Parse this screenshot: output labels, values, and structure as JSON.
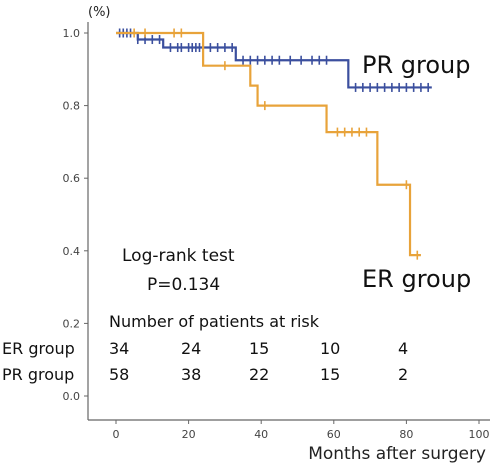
{
  "chart_data": {
    "type": "line",
    "y_unit_label": "(%)",
    "xlabel": "Months after surgery",
    "xlim": [
      0,
      100
    ],
    "ylim": [
      0.0,
      1.0
    ],
    "x_ticks": [
      "0",
      "20",
      "40",
      "60",
      "80",
      "100"
    ],
    "y_ticks": [
      "0.0",
      "0.2",
      "0.4",
      "0.6",
      "0.8",
      "1.0"
    ],
    "series": [
      {
        "name": "PR group",
        "color": "#3b4f9e",
        "steps": [
          [
            0,
            1.0
          ],
          [
            6,
            0.982
          ],
          [
            13,
            0.96
          ],
          [
            33,
            0.925
          ],
          [
            64,
            0.85
          ],
          [
            87,
            0.85
          ]
        ],
        "censor_x": [
          1,
          2,
          3,
          4,
          6,
          8,
          10,
          12,
          15,
          17,
          18,
          20,
          21,
          22,
          23,
          24,
          26,
          28,
          30,
          32,
          35,
          37,
          39,
          41,
          43,
          45,
          48,
          51,
          54,
          56,
          58,
          66,
          68,
          70,
          72,
          74,
          76,
          78,
          80,
          82,
          84,
          86
        ]
      },
      {
        "name": "ER group",
        "color": "#e8a33a",
        "steps": [
          [
            0,
            1.0
          ],
          [
            24,
            0.91
          ],
          [
            37,
            0.855
          ],
          [
            39,
            0.8
          ],
          [
            58,
            0.727
          ],
          [
            72,
            0.582
          ],
          [
            81,
            0.388
          ],
          [
            84,
            0.388
          ]
        ],
        "censor_x": [
          5,
          8,
          16,
          18,
          30,
          41,
          61,
          63,
          65,
          67,
          69,
          80,
          83
        ]
      }
    ],
    "annotations": {
      "pr_group_label": "PR group",
      "er_group_label": "ER group",
      "test_name": "Log-rank test",
      "p_value": "P=0.134"
    },
    "risk_table": {
      "title": "Number of patients at risk",
      "rows": [
        {
          "label": "ER group",
          "values": [
            "34",
            "24",
            "15",
            "10",
            "4"
          ]
        },
        {
          "label": "PR group",
          "values": [
            "58",
            "38",
            "22",
            "15",
            "2"
          ]
        }
      ]
    }
  }
}
